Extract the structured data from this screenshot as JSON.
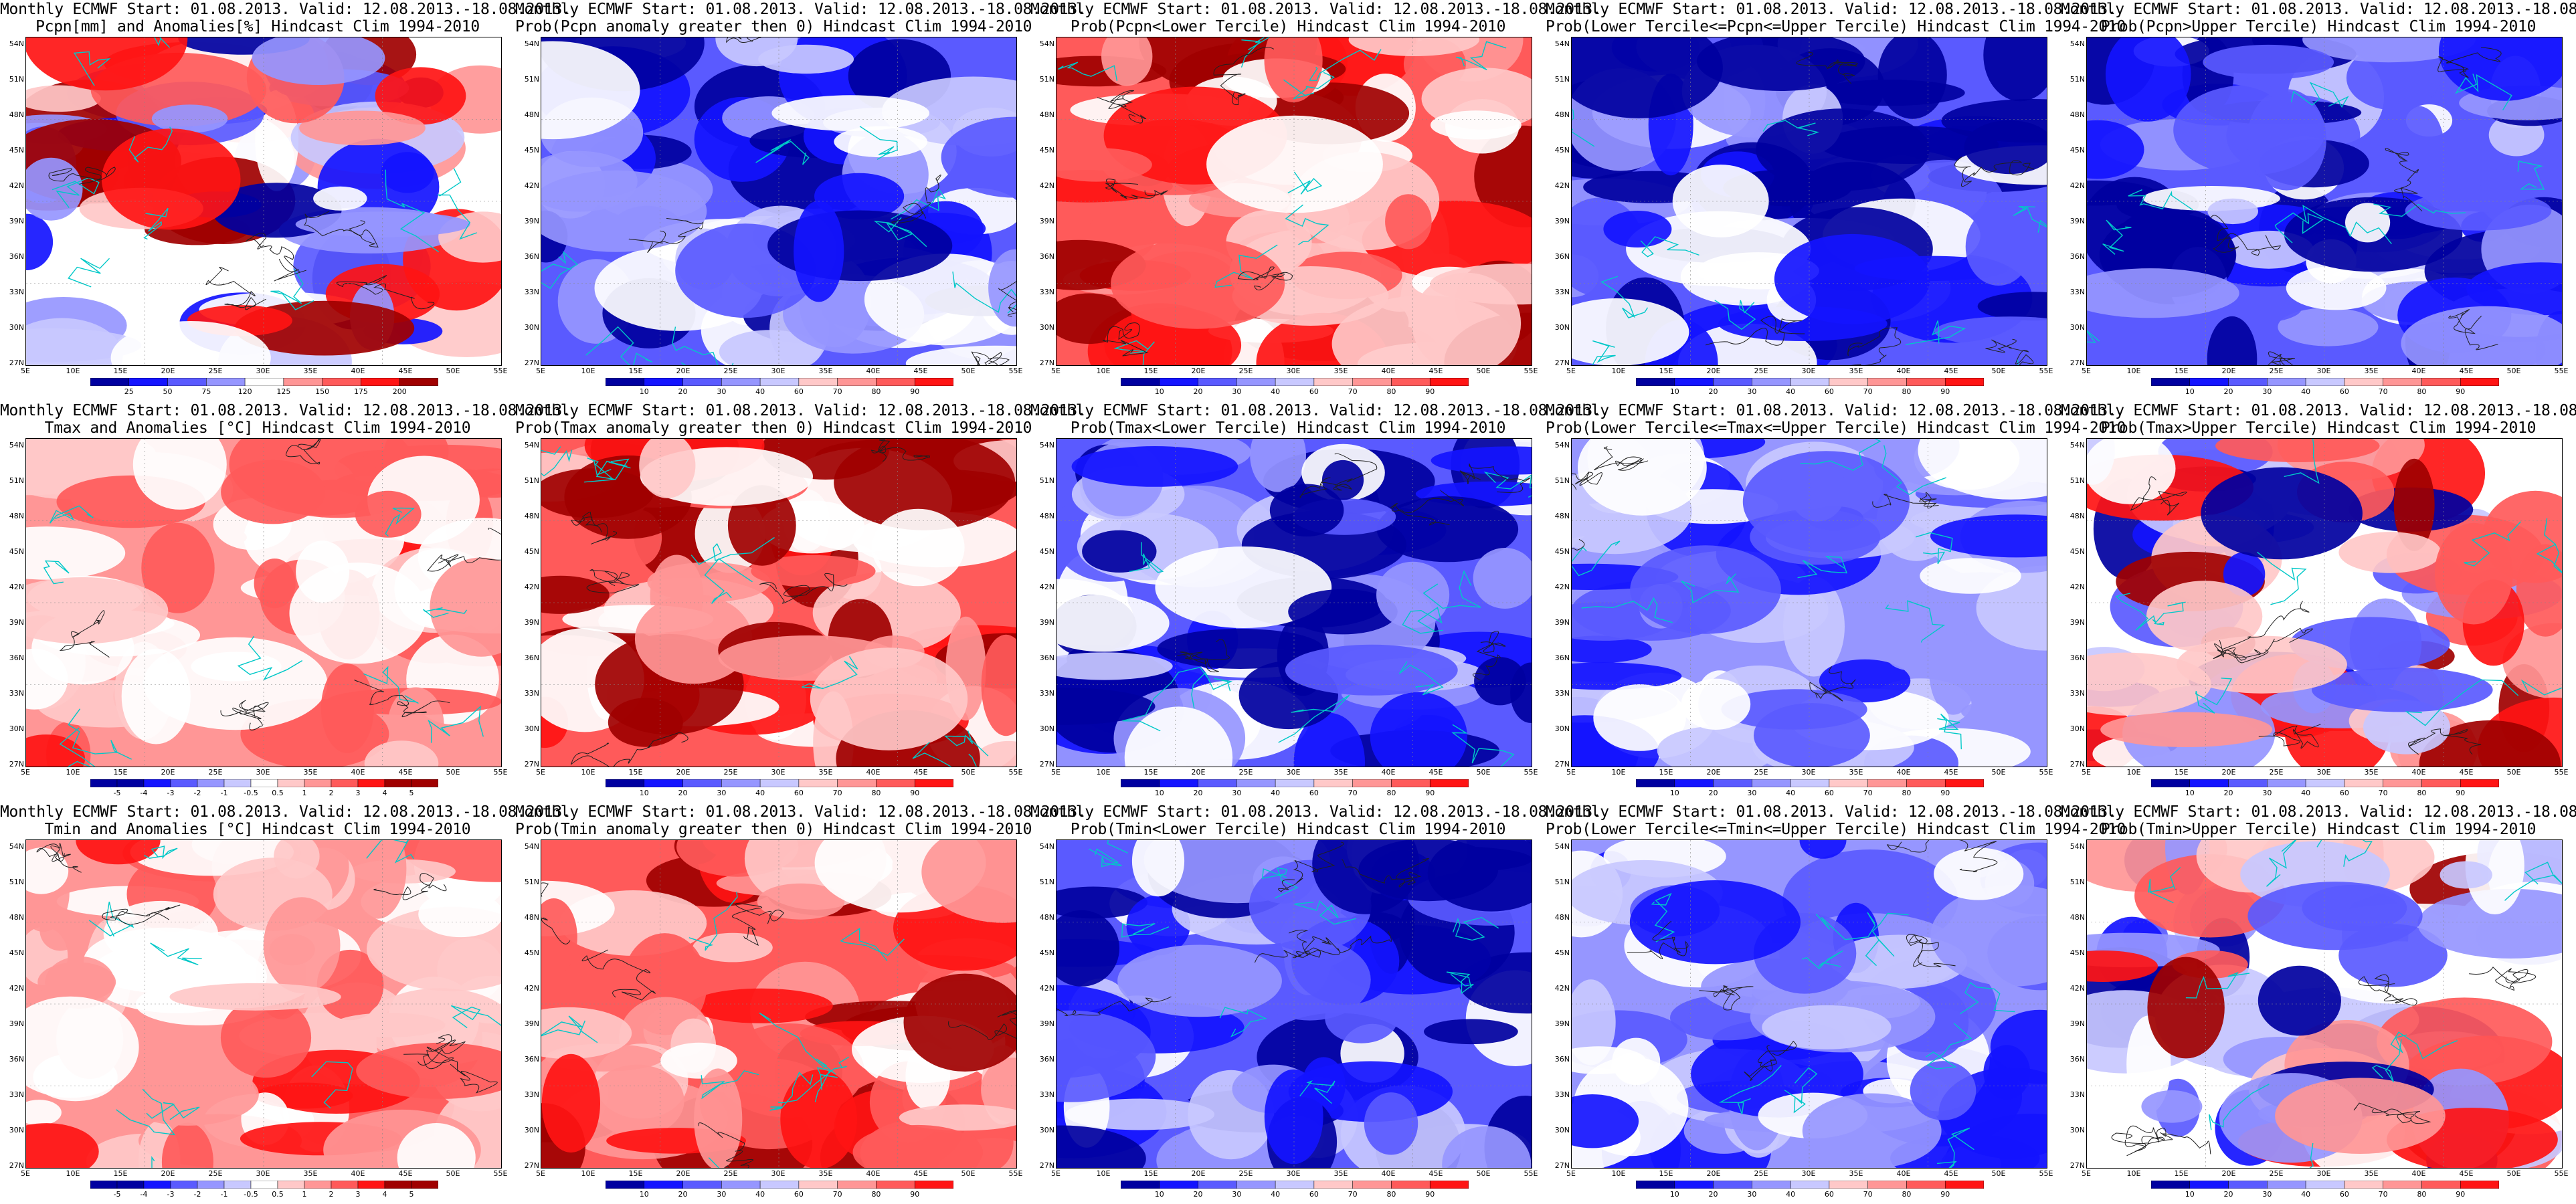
{
  "title_line1": "Monthly ECMWF Start: 01.08.2013. Valid: 12.08.2013.-18.08.2013.",
  "lat_ticks": [
    "54N",
    "51N",
    "48N",
    "45N",
    "42N",
    "39N",
    "36N",
    "33N",
    "30N",
    "27N"
  ],
  "lon_ticks": [
    "5E",
    "10E",
    "15E",
    "20E",
    "25E",
    "30E",
    "35E",
    "40E",
    "45E",
    "50E",
    "55E"
  ],
  "colors": {
    "blue_ramp": [
      "#0000a0",
      "#1414ff",
      "#5a5aff",
      "#9696ff",
      "#c8c8ff"
    ],
    "red_ramp": [
      "#ffc8c8",
      "#ff9696",
      "#ff5a5a",
      "#ff1414",
      "#a00000"
    ],
    "coast": "#00c8c8",
    "contour": "#202020"
  },
  "colorbars": {
    "pcpn_anom": [
      "25",
      "50",
      "75",
      "120",
      "125",
      "150",
      "175",
      "200"
    ],
    "temp_anom": [
      "-5",
      "-4",
      "-3",
      "-2",
      "-1",
      "-0.5",
      "0.5",
      "1",
      "2",
      "3",
      "4",
      "5"
    ],
    "prob": [
      "10",
      "20",
      "30",
      "40",
      "60",
      "70",
      "80",
      "90"
    ]
  },
  "panels": [
    {
      "title2": "Pcpn[mm] and Anomalies[%] Hindcast Clim 1994-2010",
      "cbar": "pcpn_anom",
      "ramp": "div",
      "fill": 0.35
    },
    {
      "title2": "Prob(Pcpn anomaly greater then 0) Hindcast Clim 1994-2010",
      "cbar": "prob",
      "ramp": "blue",
      "fill": 0.0
    },
    {
      "title2": "Prob(Pcpn<Lower Tercile) Hindcast Clim 1994-2010",
      "cbar": "prob",
      "ramp": "red",
      "fill": 0.0
    },
    {
      "title2": "Prob(Lower Tercile<=Pcpn<=Upper Tercile) Hindcast Clim 1994-2010",
      "cbar": "prob",
      "ramp": "blue",
      "fill": 0.0
    },
    {
      "title2": "Prob(Pcpn>Upper Tercile) Hindcast Clim 1994-2010",
      "cbar": "prob",
      "ramp": "blue",
      "fill": 0.0
    },
    {
      "title2": "Tmax and Anomalies [°C] Hindcast Clim 1994-2010",
      "cbar": "temp_anom",
      "ramp": "redlight",
      "fill": 0.0
    },
    {
      "title2": "Prob(Tmax anomaly greater then 0) Hindcast Clim 1994-2010",
      "cbar": "prob",
      "ramp": "red",
      "fill": 0.0
    },
    {
      "title2": "Prob(Tmax<Lower Tercile) Hindcast Clim 1994-2010",
      "cbar": "prob",
      "ramp": "blue",
      "fill": 0.0
    },
    {
      "title2": "Prob(Lower Tercile<=Tmax<=Upper Tercile) Hindcast Clim 1994-2010",
      "cbar": "prob",
      "ramp": "bluelight",
      "fill": 0.0
    },
    {
      "title2": "Prob(Tmax>Upper Tercile) Hindcast Clim 1994-2010",
      "cbar": "prob",
      "ramp": "div",
      "fill": 0.0
    },
    {
      "title2": "Tmin and Anomalies [°C] Hindcast Clim 1994-2010",
      "cbar": "temp_anom",
      "ramp": "redlight",
      "fill": 0.0
    },
    {
      "title2": "Prob(Tmin anomaly greater then 0) Hindcast Clim 1994-2010",
      "cbar": "prob",
      "ramp": "red",
      "fill": 0.0
    },
    {
      "title2": "Prob(Tmin<Lower Tercile) Hindcast Clim 1994-2010",
      "cbar": "prob",
      "ramp": "blue",
      "fill": 0.0
    },
    {
      "title2": "Prob(Lower Tercile<=Tmin<=Upper Tercile) Hindcast Clim 1994-2010",
      "cbar": "prob",
      "ramp": "bluelight",
      "fill": 0.0
    },
    {
      "title2": "Prob(Tmin>Upper Tercile) Hindcast Clim 1994-2010",
      "cbar": "prob",
      "ramp": "div",
      "fill": 0.0
    }
  ]
}
